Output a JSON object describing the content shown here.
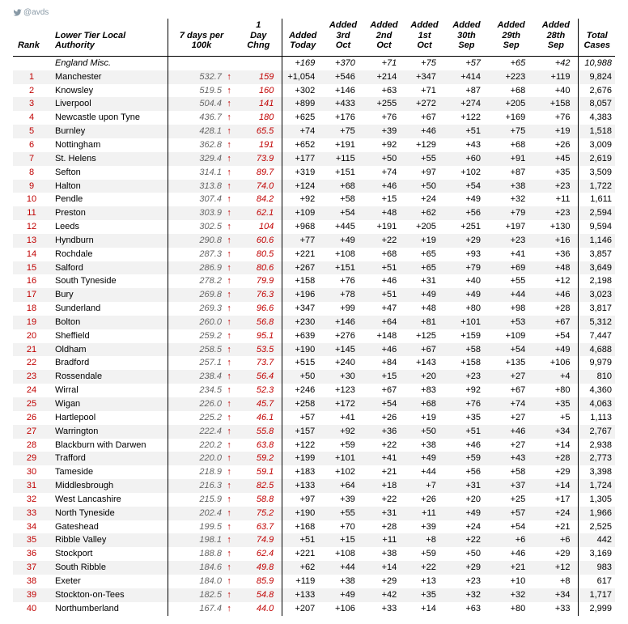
{
  "handle": "@avds",
  "headers": {
    "rank": "Rank",
    "name": "Lower Tier Local Authority",
    "per100": "7 days per 100k",
    "chng": "1 Day Chng",
    "d0": "Added Today",
    "d1": "Added 3rd Oct",
    "d2": "Added 2nd Oct",
    "d3": "Added 1st Oct",
    "d4": "Added 30th Sep",
    "d5": "Added 29th Sep",
    "d6": "Added 28th Sep",
    "total": "Total Cases"
  },
  "misc": {
    "name": "England Misc.",
    "d0": "+169",
    "d1": "+370",
    "d2": "+71",
    "d3": "+75",
    "d4": "+57",
    "d5": "+65",
    "d6": "+42",
    "total": "10,988"
  },
  "rows": [
    {
      "rank": 1,
      "name": "Manchester",
      "per100": "532.7",
      "chng": "159",
      "d0": "+1,054",
      "d1": "+546",
      "d2": "+214",
      "d3": "+347",
      "d4": "+414",
      "d5": "+223",
      "d6": "+119",
      "total": "9,824",
      "z": true
    },
    {
      "rank": 2,
      "name": "Knowsley",
      "per100": "519.5",
      "chng": "160",
      "d0": "+302",
      "d1": "+146",
      "d2": "+63",
      "d3": "+71",
      "d4": "+87",
      "d5": "+68",
      "d6": "+40",
      "total": "2,676",
      "z": false
    },
    {
      "rank": 3,
      "name": "Liverpool",
      "per100": "504.4",
      "chng": "141",
      "d0": "+899",
      "d1": "+433",
      "d2": "+255",
      "d3": "+272",
      "d4": "+274",
      "d5": "+205",
      "d6": "+158",
      "total": "8,057",
      "z": true
    },
    {
      "rank": 4,
      "name": "Newcastle upon Tyne",
      "per100": "436.7",
      "chng": "180",
      "d0": "+625",
      "d1": "+176",
      "d2": "+76",
      "d3": "+67",
      "d4": "+122",
      "d5": "+169",
      "d6": "+76",
      "total": "4,383",
      "z": false
    },
    {
      "rank": 5,
      "name": "Burnley",
      "per100": "428.1",
      "chng": "65.5",
      "d0": "+74",
      "d1": "+75",
      "d2": "+39",
      "d3": "+46",
      "d4": "+51",
      "d5": "+75",
      "d6": "+19",
      "total": "1,518",
      "z": true
    },
    {
      "rank": 6,
      "name": "Nottingham",
      "per100": "362.8",
      "chng": "191",
      "d0": "+652",
      "d1": "+191",
      "d2": "+92",
      "d3": "+129",
      "d4": "+43",
      "d5": "+68",
      "d6": "+26",
      "total": "3,009",
      "z": false
    },
    {
      "rank": 7,
      "name": "St. Helens",
      "per100": "329.4",
      "chng": "73.9",
      "d0": "+177",
      "d1": "+115",
      "d2": "+50",
      "d3": "+55",
      "d4": "+60",
      "d5": "+91",
      "d6": "+45",
      "total": "2,619",
      "z": true
    },
    {
      "rank": 8,
      "name": "Sefton",
      "per100": "314.1",
      "chng": "89.7",
      "d0": "+319",
      "d1": "+151",
      "d2": "+74",
      "d3": "+97",
      "d4": "+102",
      "d5": "+87",
      "d6": "+35",
      "total": "3,509",
      "z": false
    },
    {
      "rank": 9,
      "name": "Halton",
      "per100": "313.8",
      "chng": "74.0",
      "d0": "+124",
      "d1": "+68",
      "d2": "+46",
      "d3": "+50",
      "d4": "+54",
      "d5": "+38",
      "d6": "+23",
      "total": "1,722",
      "z": true
    },
    {
      "rank": 10,
      "name": "Pendle",
      "per100": "307.4",
      "chng": "84.2",
      "d0": "+92",
      "d1": "+58",
      "d2": "+15",
      "d3": "+24",
      "d4": "+49",
      "d5": "+32",
      "d6": "+11",
      "total": "1,611",
      "z": false
    },
    {
      "rank": 11,
      "name": "Preston",
      "per100": "303.9",
      "chng": "62.1",
      "d0": "+109",
      "d1": "+54",
      "d2": "+48",
      "d3": "+62",
      "d4": "+56",
      "d5": "+79",
      "d6": "+23",
      "total": "2,594",
      "z": true
    },
    {
      "rank": 12,
      "name": "Leeds",
      "per100": "302.5",
      "chng": "104",
      "d0": "+968",
      "d1": "+445",
      "d2": "+191",
      "d3": "+205",
      "d4": "+251",
      "d5": "+197",
      "d6": "+130",
      "total": "9,594",
      "z": false
    },
    {
      "rank": 13,
      "name": "Hyndburn",
      "per100": "290.8",
      "chng": "60.6",
      "d0": "+77",
      "d1": "+49",
      "d2": "+22",
      "d3": "+19",
      "d4": "+29",
      "d5": "+23",
      "d6": "+16",
      "total": "1,146",
      "z": true
    },
    {
      "rank": 14,
      "name": "Rochdale",
      "per100": "287.3",
      "chng": "80.5",
      "d0": "+221",
      "d1": "+108",
      "d2": "+68",
      "d3": "+65",
      "d4": "+93",
      "d5": "+41",
      "d6": "+36",
      "total": "3,857",
      "z": false
    },
    {
      "rank": 15,
      "name": "Salford",
      "per100": "286.9",
      "chng": "80.6",
      "d0": "+267",
      "d1": "+151",
      "d2": "+51",
      "d3": "+65",
      "d4": "+79",
      "d5": "+69",
      "d6": "+48",
      "total": "3,649",
      "z": true
    },
    {
      "rank": 16,
      "name": "South Tyneside",
      "per100": "278.2",
      "chng": "79.9",
      "d0": "+158",
      "d1": "+76",
      "d2": "+46",
      "d3": "+31",
      "d4": "+40",
      "d5": "+55",
      "d6": "+12",
      "total": "2,198",
      "z": false
    },
    {
      "rank": 17,
      "name": "Bury",
      "per100": "269.8",
      "chng": "76.3",
      "d0": "+196",
      "d1": "+78",
      "d2": "+51",
      "d3": "+49",
      "d4": "+49",
      "d5": "+44",
      "d6": "+46",
      "total": "3,023",
      "z": true
    },
    {
      "rank": 18,
      "name": "Sunderland",
      "per100": "269.3",
      "chng": "96.6",
      "d0": "+347",
      "d1": "+99",
      "d2": "+47",
      "d3": "+48",
      "d4": "+80",
      "d5": "+98",
      "d6": "+28",
      "total": "3,817",
      "z": false
    },
    {
      "rank": 19,
      "name": "Bolton",
      "per100": "260.0",
      "chng": "56.8",
      "d0": "+230",
      "d1": "+146",
      "d2": "+64",
      "d3": "+81",
      "d4": "+101",
      "d5": "+53",
      "d6": "+67",
      "total": "5,312",
      "z": true
    },
    {
      "rank": 20,
      "name": "Sheffield",
      "per100": "259.2",
      "chng": "95.1",
      "d0": "+639",
      "d1": "+276",
      "d2": "+148",
      "d3": "+125",
      "d4": "+159",
      "d5": "+109",
      "d6": "+54",
      "total": "7,447",
      "z": false
    },
    {
      "rank": 21,
      "name": "Oldham",
      "per100": "258.5",
      "chng": "53.5",
      "d0": "+190",
      "d1": "+145",
      "d2": "+46",
      "d3": "+67",
      "d4": "+58",
      "d5": "+54",
      "d6": "+49",
      "total": "4,688",
      "z": true
    },
    {
      "rank": 22,
      "name": "Bradford",
      "per100": "257.1",
      "chng": "73.7",
      "d0": "+515",
      "d1": "+240",
      "d2": "+84",
      "d3": "+143",
      "d4": "+158",
      "d5": "+135",
      "d6": "+106",
      "total": "9,979",
      "z": false
    },
    {
      "rank": 23,
      "name": "Rossendale",
      "per100": "238.4",
      "chng": "56.4",
      "d0": "+50",
      "d1": "+30",
      "d2": "+15",
      "d3": "+20",
      "d4": "+23",
      "d5": "+27",
      "d6": "+4",
      "total": "810",
      "z": true
    },
    {
      "rank": 24,
      "name": "Wirral",
      "per100": "234.5",
      "chng": "52.3",
      "d0": "+246",
      "d1": "+123",
      "d2": "+67",
      "d3": "+83",
      "d4": "+92",
      "d5": "+67",
      "d6": "+80",
      "total": "4,360",
      "z": false
    },
    {
      "rank": 25,
      "name": "Wigan",
      "per100": "226.0",
      "chng": "45.7",
      "d0": "+258",
      "d1": "+172",
      "d2": "+54",
      "d3": "+68",
      "d4": "+76",
      "d5": "+74",
      "d6": "+35",
      "total": "4,063",
      "z": true
    },
    {
      "rank": 26,
      "name": "Hartlepool",
      "per100": "225.2",
      "chng": "46.1",
      "d0": "+57",
      "d1": "+41",
      "d2": "+26",
      "d3": "+19",
      "d4": "+35",
      "d5": "+27",
      "d6": "+5",
      "total": "1,113",
      "z": false
    },
    {
      "rank": 27,
      "name": "Warrington",
      "per100": "222.4",
      "chng": "55.8",
      "d0": "+157",
      "d1": "+92",
      "d2": "+36",
      "d3": "+50",
      "d4": "+51",
      "d5": "+46",
      "d6": "+34",
      "total": "2,767",
      "z": true
    },
    {
      "rank": 28,
      "name": "Blackburn with Darwen",
      "per100": "220.2",
      "chng": "63.8",
      "d0": "+122",
      "d1": "+59",
      "d2": "+22",
      "d3": "+38",
      "d4": "+46",
      "d5": "+27",
      "d6": "+14",
      "total": "2,938",
      "z": false
    },
    {
      "rank": 29,
      "name": "Trafford",
      "per100": "220.0",
      "chng": "59.2",
      "d0": "+199",
      "d1": "+101",
      "d2": "+41",
      "d3": "+49",
      "d4": "+59",
      "d5": "+43",
      "d6": "+28",
      "total": "2,773",
      "z": true
    },
    {
      "rank": 30,
      "name": "Tameside",
      "per100": "218.9",
      "chng": "59.1",
      "d0": "+183",
      "d1": "+102",
      "d2": "+21",
      "d3": "+44",
      "d4": "+56",
      "d5": "+58",
      "d6": "+29",
      "total": "3,398",
      "z": false
    },
    {
      "rank": 31,
      "name": "Middlesbrough",
      "per100": "216.3",
      "chng": "82.5",
      "d0": "+133",
      "d1": "+64",
      "d2": "+18",
      "d3": "+7",
      "d4": "+31",
      "d5": "+37",
      "d6": "+14",
      "total": "1,724",
      "z": true
    },
    {
      "rank": 32,
      "name": "West Lancashire",
      "per100": "215.9",
      "chng": "58.8",
      "d0": "+97",
      "d1": "+39",
      "d2": "+22",
      "d3": "+26",
      "d4": "+20",
      "d5": "+25",
      "d6": "+17",
      "total": "1,305",
      "z": false
    },
    {
      "rank": 33,
      "name": "North Tyneside",
      "per100": "202.4",
      "chng": "75.2",
      "d0": "+190",
      "d1": "+55",
      "d2": "+31",
      "d3": "+11",
      "d4": "+49",
      "d5": "+57",
      "d6": "+24",
      "total": "1,966",
      "z": true
    },
    {
      "rank": 34,
      "name": "Gateshead",
      "per100": "199.5",
      "chng": "63.7",
      "d0": "+168",
      "d1": "+70",
      "d2": "+28",
      "d3": "+39",
      "d4": "+24",
      "d5": "+54",
      "d6": "+21",
      "total": "2,525",
      "z": false
    },
    {
      "rank": 35,
      "name": "Ribble Valley",
      "per100": "198.1",
      "chng": "74.9",
      "d0": "+51",
      "d1": "+15",
      "d2": "+11",
      "d3": "+8",
      "d4": "+22",
      "d5": "+6",
      "d6": "+6",
      "total": "442",
      "z": true
    },
    {
      "rank": 36,
      "name": "Stockport",
      "per100": "188.8",
      "chng": "62.4",
      "d0": "+221",
      "d1": "+108",
      "d2": "+38",
      "d3": "+59",
      "d4": "+50",
      "d5": "+46",
      "d6": "+29",
      "total": "3,169",
      "z": false
    },
    {
      "rank": 37,
      "name": "South Ribble",
      "per100": "184.6",
      "chng": "49.8",
      "d0": "+62",
      "d1": "+44",
      "d2": "+14",
      "d3": "+22",
      "d4": "+29",
      "d5": "+21",
      "d6": "+12",
      "total": "983",
      "z": true
    },
    {
      "rank": 38,
      "name": "Exeter",
      "per100": "184.0",
      "chng": "85.9",
      "d0": "+119",
      "d1": "+38",
      "d2": "+29",
      "d3": "+13",
      "d4": "+23",
      "d5": "+10",
      "d6": "+8",
      "total": "617",
      "z": false
    },
    {
      "rank": 39,
      "name": "Stockton-on-Tees",
      "per100": "182.5",
      "chng": "54.8",
      "d0": "+133",
      "d1": "+49",
      "d2": "+42",
      "d3": "+35",
      "d4": "+32",
      "d5": "+32",
      "d6": "+34",
      "total": "1,717",
      "z": true
    },
    {
      "rank": 40,
      "name": "Northumberland",
      "per100": "167.4",
      "chng": "44.0",
      "d0": "+207",
      "d1": "+106",
      "d2": "+33",
      "d3": "+14",
      "d4": "+63",
      "d5": "+80",
      "d6": "+33",
      "total": "2,999",
      "z": false
    }
  ]
}
